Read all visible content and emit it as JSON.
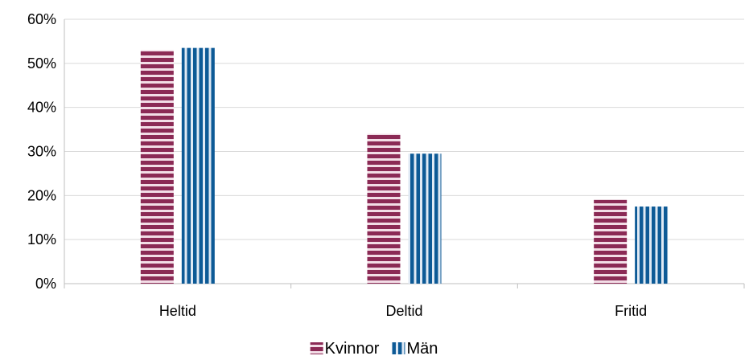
{
  "chart_data": {
    "type": "bar",
    "categories": [
      "Heltid",
      "Deltid",
      "Fritid"
    ],
    "series": [
      {
        "name": "Kvinnor",
        "values": [
          0.53,
          0.34,
          0.19
        ],
        "color": "#8b2a55",
        "stripe_color": "#f2dde6",
        "pattern": "horizontal-stripes"
      },
      {
        "name": "Män",
        "values": [
          0.535,
          0.295,
          0.175
        ],
        "color": "#0d5a96",
        "stripe_color": "#dfe9f4",
        "pattern": "vertical-stripes"
      }
    ],
    "ylim": [
      0,
      0.6
    ],
    "yticks": [
      {
        "value": 0,
        "label": "0%"
      },
      {
        "value": 0.1,
        "label": "10%"
      },
      {
        "value": 0.2,
        "label": "20%"
      },
      {
        "value": 0.3,
        "label": "30%"
      },
      {
        "value": 0.4,
        "label": "40%"
      },
      {
        "value": 0.5,
        "label": "50%"
      },
      {
        "value": 0.6,
        "label": "60%"
      }
    ],
    "grid": true,
    "grid_color": "#d9d9d9",
    "axis_color": "#bfbfbf",
    "legend_position": "bottom"
  }
}
